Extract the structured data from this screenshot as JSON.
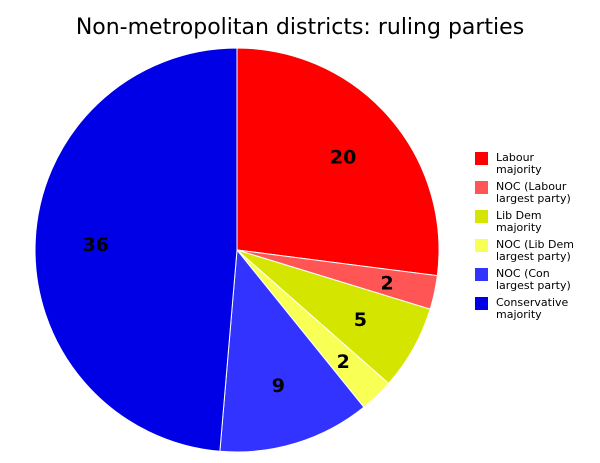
{
  "chart_data": {
    "type": "pie",
    "title": "Non-metropolitan districts: ruling parties",
    "legend_position": "right",
    "slices": [
      {
        "label_lines": [
          "Labour",
          "majority"
        ],
        "value": 20,
        "color": "#ff0000"
      },
      {
        "label_lines": [
          "NOC (Labour",
          "largest party)"
        ],
        "value": 2,
        "color": "#ff5555"
      },
      {
        "label_lines": [
          "Lib Dem",
          "majority"
        ],
        "value": 5,
        "color": "#d4e600"
      },
      {
        "label_lines": [
          "NOC (Lib Dem",
          "largest party)"
        ],
        "value": 2,
        "color": "#f8ff55"
      },
      {
        "label_lines": [
          "NOC (Con",
          "largest party)"
        ],
        "value": 9,
        "color": "#3333ff"
      },
      {
        "label_lines": [
          "Conservative",
          "majority"
        ],
        "value": 36,
        "color": "#0000e6"
      }
    ]
  }
}
